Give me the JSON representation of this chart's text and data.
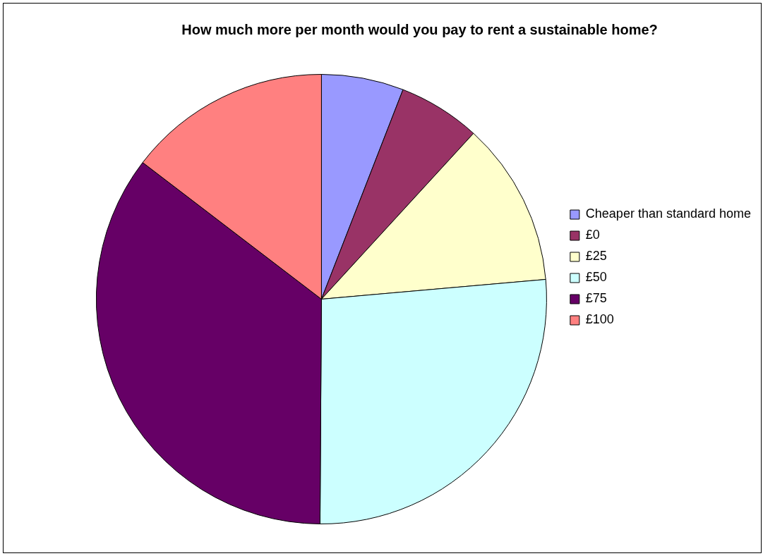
{
  "chart_data": {
    "type": "pie",
    "title": "How much more per month would you pay to rent a sustainable home?",
    "categories": [
      "Cheaper than standard home",
      "£0",
      "£25",
      "£50",
      "£75",
      "£100"
    ],
    "values": [
      5.9,
      5.9,
      11.8,
      26.5,
      35.3,
      14.6
    ],
    "colors": [
      "#9999ff",
      "#993366",
      "#ffffcc",
      "#ccffff",
      "#660066",
      "#ff8080"
    ],
    "legend": "right"
  }
}
